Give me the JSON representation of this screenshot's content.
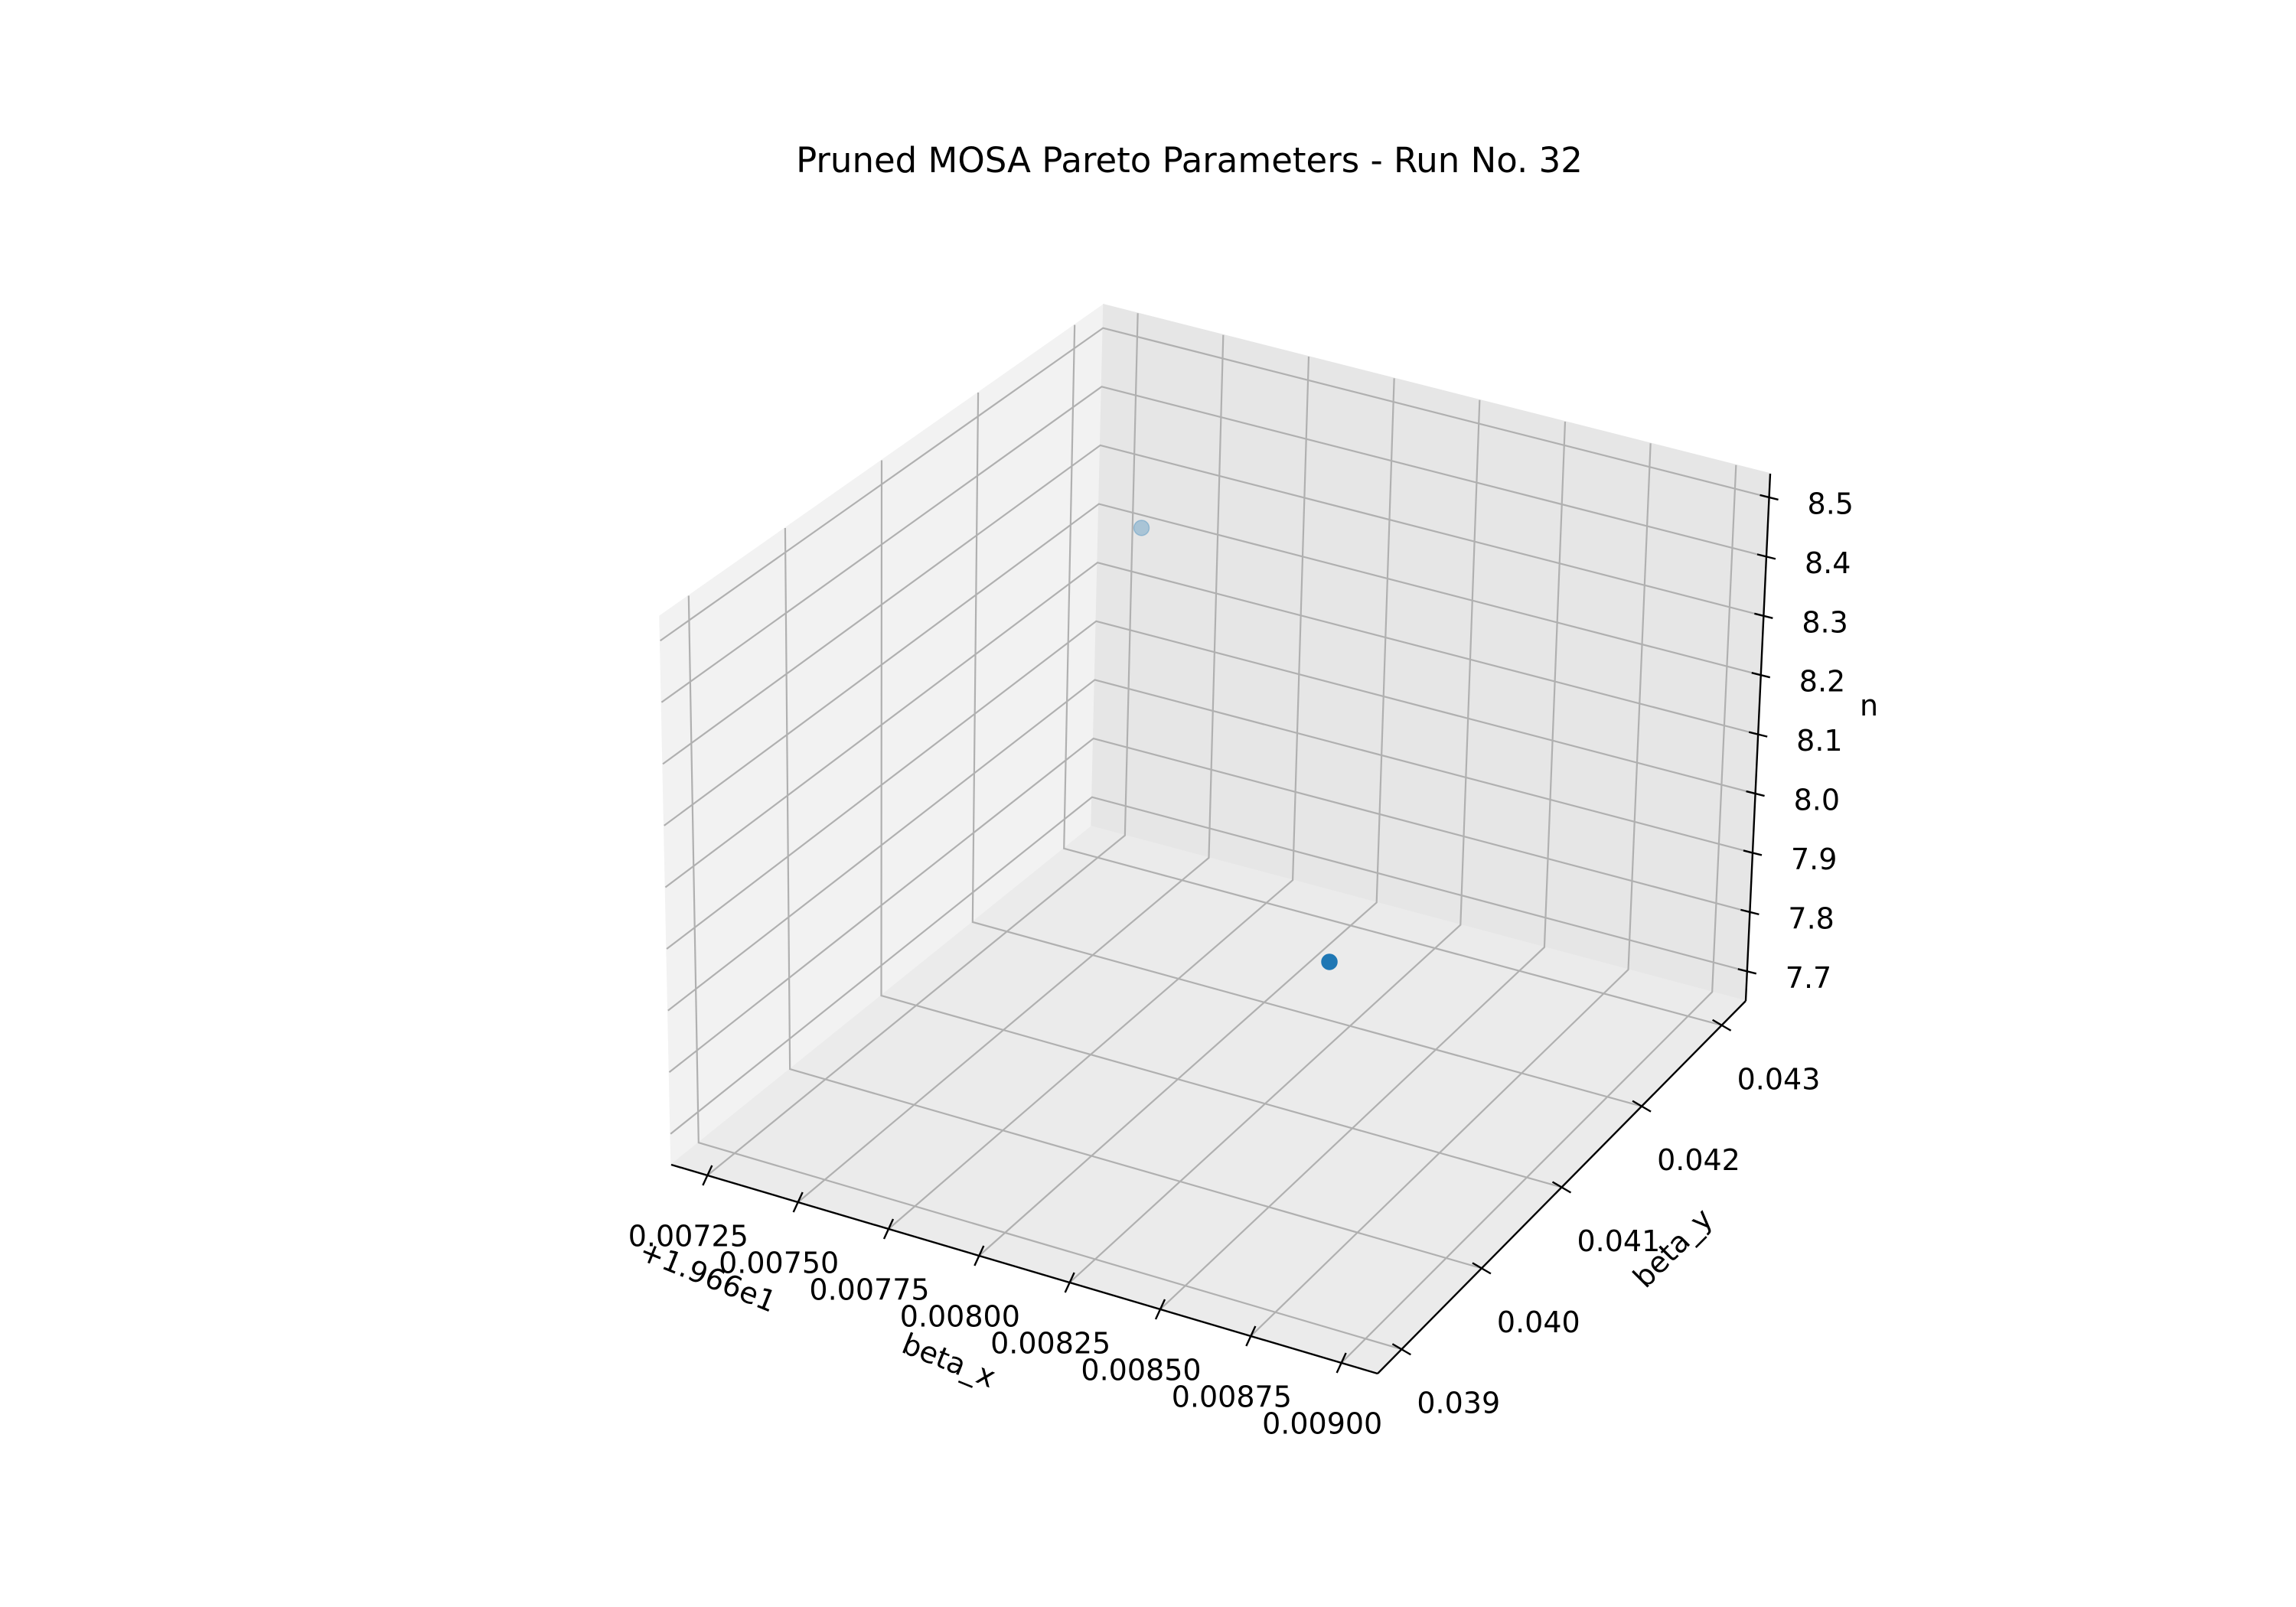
{
  "chart_data": {
    "type": "scatter",
    "projection": "3d",
    "title": "Pruned MOSA Pareto Parameters - Run No. 32",
    "xlabel": "beta_x",
    "ylabel": "beta_y",
    "zlabel": "n",
    "x_offset_label": "+1.966e1",
    "x_ticks": [
      "0.00725",
      "0.00750",
      "0.00775",
      "0.00800",
      "0.00825",
      "0.00850",
      "0.00875",
      "0.00900"
    ],
    "y_ticks": [
      "0.039",
      "0.040",
      "0.041",
      "0.042",
      "0.043"
    ],
    "z_ticks": [
      "7.7",
      "7.8",
      "7.9",
      "8.0",
      "8.1",
      "8.2",
      "8.3",
      "8.4",
      "8.5"
    ],
    "xlim": [
      0.00715,
      0.0091
    ],
    "ylim": [
      0.0387,
      0.0433
    ],
    "zlim": [
      7.65,
      8.54
    ],
    "grid": true,
    "marker_color": "#1f77b4",
    "points": [
      {
        "x": 0.00733,
        "y": 0.0431,
        "z": 8.21
      },
      {
        "x": 0.00876,
        "y": 0.0395,
        "z": 8.13
      }
    ]
  }
}
